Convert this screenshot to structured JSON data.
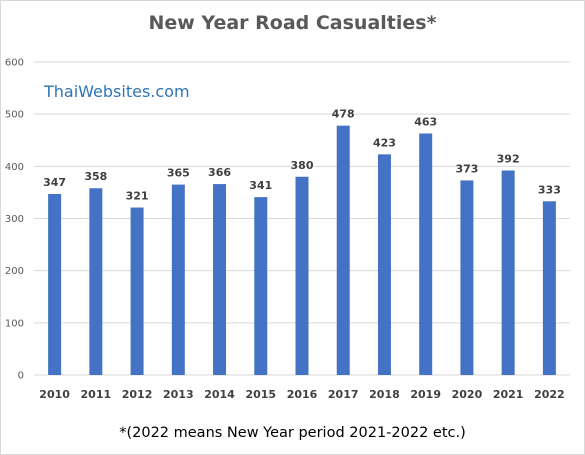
{
  "chart_data": {
    "type": "bar",
    "title": "New Year Road Casualties*",
    "categories": [
      "2010",
      "2011",
      "2012",
      "2013",
      "2014",
      "2015",
      "2016",
      "2017",
      "2018",
      "2019",
      "2020",
      "2021",
      "2022"
    ],
    "values": [
      347,
      358,
      321,
      365,
      366,
      341,
      380,
      478,
      423,
      463,
      373,
      392,
      333
    ],
    "data_labels": [
      "347",
      "358",
      "321",
      "365",
      "366",
      "341",
      "380",
      "478",
      "423",
      "463",
      "373",
      "392",
      "333"
    ],
    "y_ticks": [
      "0",
      "100",
      "200",
      "300",
      "400",
      "500",
      "600"
    ],
    "ylim": [
      0,
      600
    ],
    "grid": true,
    "legend": "none",
    "bar_color": "#4472c4",
    "grid_color": "#d9d9d9",
    "footnote": "*(2022 means New Year period 2021-2022 etc.)"
  },
  "watermark": "ThaiWebsites.com"
}
